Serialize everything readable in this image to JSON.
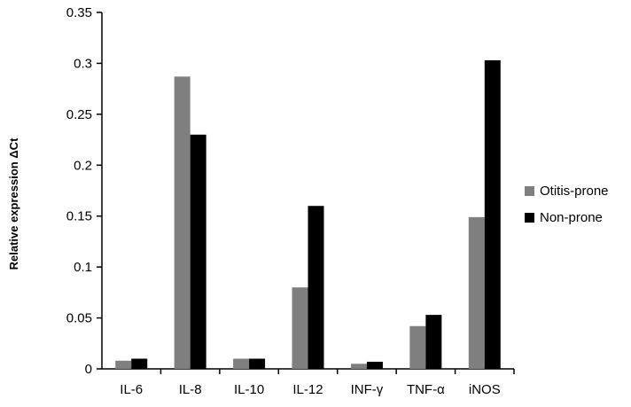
{
  "chart_data": {
    "type": "bar",
    "title": "",
    "xlabel": "",
    "ylabel": "Relative expression ΔCt",
    "categories": [
      "IL-6",
      "IL-8",
      "IL-10",
      "IL-12",
      "INF-γ",
      "TNF-α",
      "iNOS"
    ],
    "series": [
      {
        "name": "Otitis-prone",
        "color": "#7f7f7f",
        "values": [
          0.008,
          0.287,
          0.01,
          0.08,
          0.005,
          0.042,
          0.149
        ]
      },
      {
        "name": "Non-prone",
        "color": "#000000",
        "values": [
          0.01,
          0.23,
          0.01,
          0.16,
          0.007,
          0.053,
          0.303
        ]
      }
    ],
    "ylim": [
      0,
      0.35
    ],
    "yticks": [
      "0",
      "0.05",
      "0.1",
      "0.15",
      "0.2",
      "0.25",
      "0.3",
      "0.35"
    ],
    "grid": false,
    "legend_position": "right"
  }
}
